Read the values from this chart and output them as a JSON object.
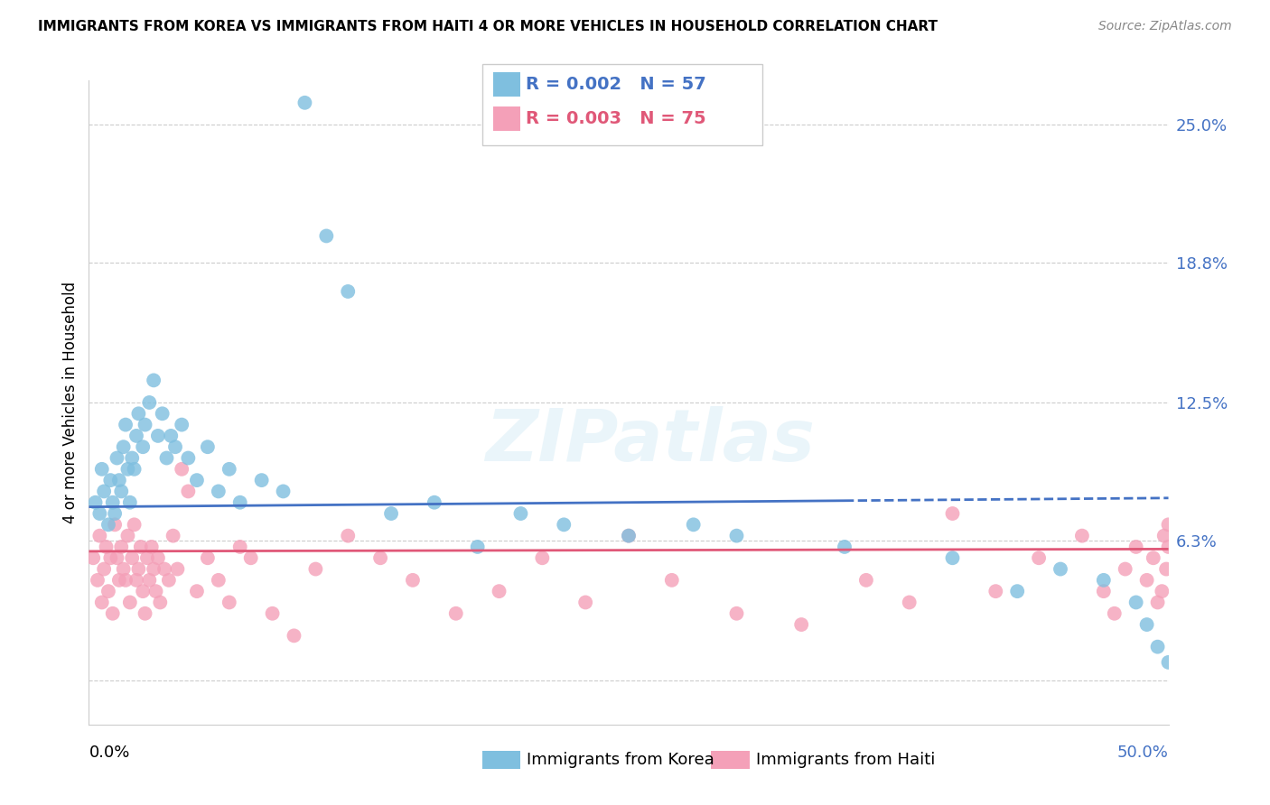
{
  "title": "IMMIGRANTS FROM KOREA VS IMMIGRANTS FROM HAITI 4 OR MORE VEHICLES IN HOUSEHOLD CORRELATION CHART",
  "source": "Source: ZipAtlas.com",
  "ylabel": "4 or more Vehicles in Household",
  "xlim": [
    0.0,
    50.0
  ],
  "ylim": [
    -2.0,
    27.0
  ],
  "yticks": [
    0.0,
    6.3,
    12.5,
    18.8,
    25.0
  ],
  "ytick_labels": [
    "",
    "6.3%",
    "12.5%",
    "18.8%",
    "25.0%"
  ],
  "korea_color": "#7fbfdf",
  "haiti_color": "#f4a0b8",
  "korea_line_color": "#4472c4",
  "haiti_line_color": "#e05878",
  "korea_R": "0.002",
  "korea_N": "57",
  "haiti_R": "0.003",
  "haiti_N": "75",
  "korea_mean_y": 7.8,
  "haiti_mean_y": 5.8,
  "watermark": "ZIPatlas",
  "korea_x": [
    0.3,
    0.5,
    0.6,
    0.7,
    0.9,
    1.0,
    1.1,
    1.2,
    1.3,
    1.4,
    1.5,
    1.6,
    1.7,
    1.8,
    1.9,
    2.0,
    2.1,
    2.2,
    2.3,
    2.5,
    2.6,
    2.8,
    3.0,
    3.2,
    3.4,
    3.6,
    3.8,
    4.0,
    4.3,
    4.6,
    5.0,
    5.5,
    6.0,
    6.5,
    7.0,
    8.0,
    9.0,
    10.0,
    11.0,
    12.0,
    14.0,
    16.0,
    18.0,
    20.0,
    22.0,
    25.0,
    28.0,
    30.0,
    35.0,
    40.0,
    43.0,
    45.0,
    47.0,
    48.5,
    49.0,
    49.5,
    50.0
  ],
  "korea_y": [
    8.0,
    7.5,
    9.5,
    8.5,
    7.0,
    9.0,
    8.0,
    7.5,
    10.0,
    9.0,
    8.5,
    10.5,
    11.5,
    9.5,
    8.0,
    10.0,
    9.5,
    11.0,
    12.0,
    10.5,
    11.5,
    12.5,
    13.5,
    11.0,
    12.0,
    10.0,
    11.0,
    10.5,
    11.5,
    10.0,
    9.0,
    10.5,
    8.5,
    9.5,
    8.0,
    9.0,
    8.5,
    26.0,
    20.0,
    17.5,
    7.5,
    8.0,
    6.0,
    7.5,
    7.0,
    6.5,
    7.0,
    6.5,
    6.0,
    5.5,
    4.0,
    5.0,
    4.5,
    3.5,
    2.5,
    1.5,
    0.8
  ],
  "haiti_x": [
    0.2,
    0.4,
    0.5,
    0.6,
    0.7,
    0.8,
    0.9,
    1.0,
    1.1,
    1.2,
    1.3,
    1.4,
    1.5,
    1.6,
    1.7,
    1.8,
    1.9,
    2.0,
    2.1,
    2.2,
    2.3,
    2.4,
    2.5,
    2.6,
    2.7,
    2.8,
    2.9,
    3.0,
    3.1,
    3.2,
    3.3,
    3.5,
    3.7,
    3.9,
    4.1,
    4.3,
    4.6,
    5.0,
    5.5,
    6.0,
    6.5,
    7.0,
    7.5,
    8.5,
    9.5,
    10.5,
    12.0,
    13.5,
    15.0,
    17.0,
    19.0,
    21.0,
    23.0,
    25.0,
    27.0,
    30.0,
    33.0,
    36.0,
    38.0,
    40.0,
    42.0,
    44.0,
    46.0,
    47.0,
    47.5,
    48.0,
    48.5,
    49.0,
    49.3,
    49.5,
    49.7,
    49.8,
    49.9,
    50.0,
    50.0
  ],
  "haiti_y": [
    5.5,
    4.5,
    6.5,
    3.5,
    5.0,
    6.0,
    4.0,
    5.5,
    3.0,
    7.0,
    5.5,
    4.5,
    6.0,
    5.0,
    4.5,
    6.5,
    3.5,
    5.5,
    7.0,
    4.5,
    5.0,
    6.0,
    4.0,
    3.0,
    5.5,
    4.5,
    6.0,
    5.0,
    4.0,
    5.5,
    3.5,
    5.0,
    4.5,
    6.5,
    5.0,
    9.5,
    8.5,
    4.0,
    5.5,
    4.5,
    3.5,
    6.0,
    5.5,
    3.0,
    2.0,
    5.0,
    6.5,
    5.5,
    4.5,
    3.0,
    4.0,
    5.5,
    3.5,
    6.5,
    4.5,
    3.0,
    2.5,
    4.5,
    3.5,
    7.5,
    4.0,
    5.5,
    6.5,
    4.0,
    3.0,
    5.0,
    6.0,
    4.5,
    5.5,
    3.5,
    4.0,
    6.5,
    5.0,
    7.0,
    6.0
  ]
}
